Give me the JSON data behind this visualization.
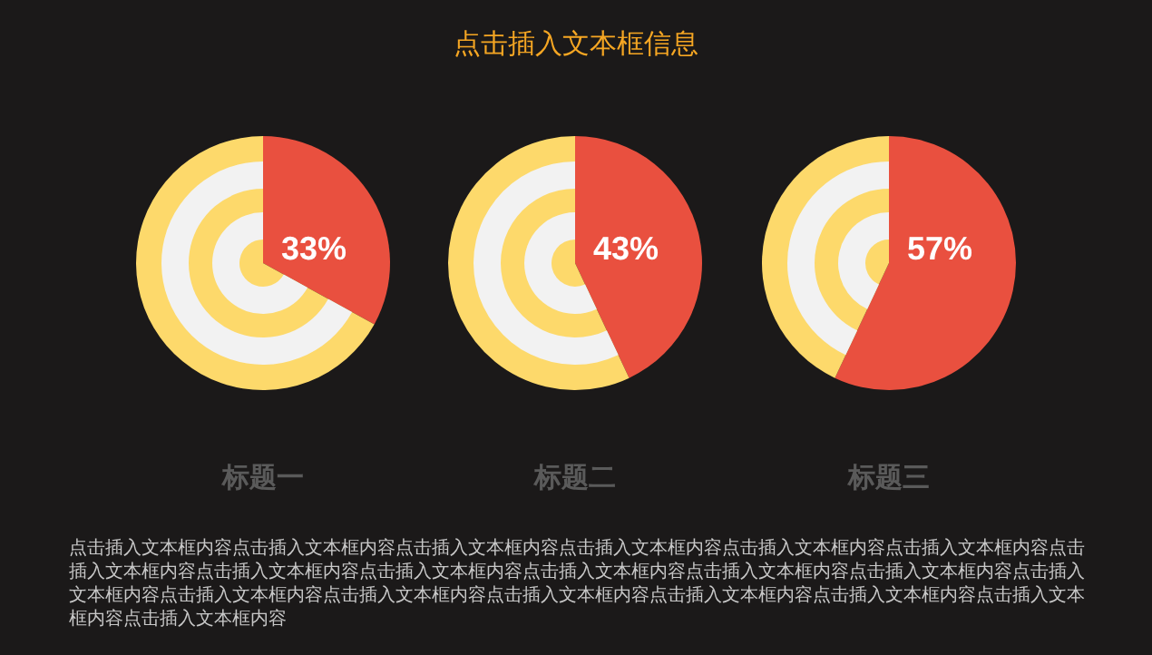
{
  "chart_data": [
    {
      "type": "pie",
      "xlabel": "标题一",
      "categories": [
        null,
        null
      ],
      "values": [
        33,
        67
      ],
      "colors": [
        "#e9503f",
        "#fdd96b"
      ],
      "value_labels": [
        "33%",
        null
      ],
      "legend": false,
      "annotations": [
        "点击插入文本框内容点击插入文本框内容点击插入文本框内容点击插入文本框内容点击插入文本框内容点击插入文本框内容点击插入文本框内容点击插入文本框内容点击插入文本框内容点击插入文本框内容点击插入文本框内容点击插入文本框内容点击插入文本框内容点击插入文本框内容点击插入文本框内容点击插入文本框内容点击插入文本框内容点击插入文本框内容点击插入文本框内容点击插入文本框内容"
      ]
    },
    {
      "type": "pie",
      "title": "点击插入文本框信息",
      "xlabel": "标题二",
      "categories": [
        null,
        null
      ],
      "values": [
        43,
        57
      ],
      "colors": [
        "#e9503f",
        "#fdd96b"
      ],
      "value_labels": [
        "43%",
        null
      ],
      "legend": false
    },
    {
      "type": "pie",
      "xlabel": "标题三",
      "categories": [
        null,
        null
      ],
      "values": [
        57,
        43
      ],
      "colors": [
        "#e9503f",
        "#fdd96b"
      ],
      "value_labels": [
        "57%",
        null
      ],
      "legend": false
    }
  ]
}
